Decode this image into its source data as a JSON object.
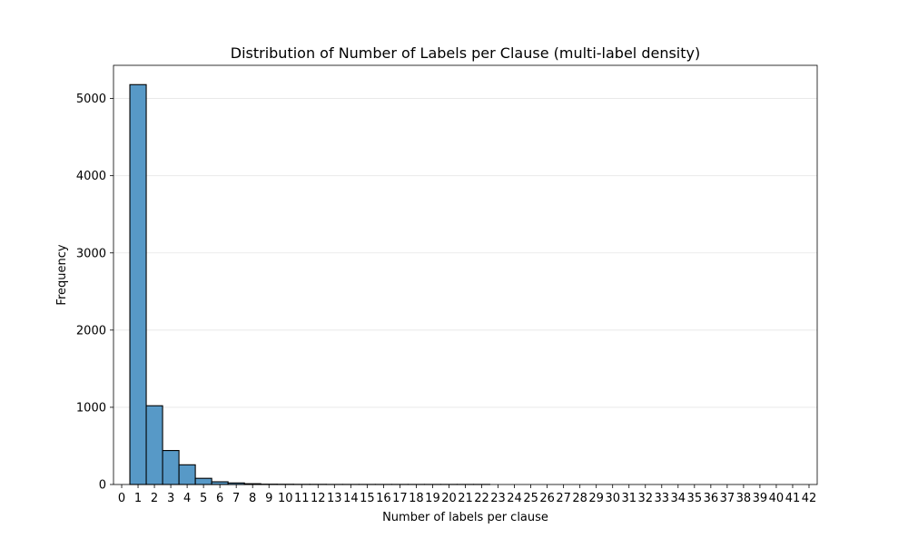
{
  "chart_data": {
    "type": "bar",
    "title": "Distribution of Number of Labels per Clause (multi-label density)",
    "xlabel": "Number of labels per clause",
    "ylabel": "Frequency",
    "x_ticks": [
      "0",
      "1",
      "2",
      "3",
      "4",
      "5",
      "6",
      "7",
      "8",
      "9",
      "10",
      "11",
      "12",
      "13",
      "14",
      "15",
      "16",
      "17",
      "18",
      "19",
      "20",
      "21",
      "22",
      "23",
      "24",
      "25",
      "26",
      "27",
      "28",
      "29",
      "30",
      "31",
      "32",
      "33",
      "34",
      "35",
      "36",
      "37",
      "38",
      "39",
      "40",
      "41",
      "42"
    ],
    "y_ticks": [
      "0",
      "1000",
      "2000",
      "3000",
      "4000",
      "5000"
    ],
    "xlim": [
      -0.5,
      42.5
    ],
    "ylim": [
      0,
      5430
    ],
    "grid": "y-axis, light",
    "bar_color": "#5799c7",
    "bins": [
      {
        "x": 1,
        "value": 5180
      },
      {
        "x": 2,
        "value": 1020
      },
      {
        "x": 3,
        "value": 440
      },
      {
        "x": 4,
        "value": 255
      },
      {
        "x": 5,
        "value": 80
      },
      {
        "x": 6,
        "value": 35
      },
      {
        "x": 7,
        "value": 20
      },
      {
        "x": 8,
        "value": 10
      },
      {
        "x": 9,
        "value": 4
      },
      {
        "x": 10,
        "value": 3
      },
      {
        "x": 11,
        "value": 2
      },
      {
        "x": 12,
        "value": 2
      },
      {
        "x": 13,
        "value": 1
      },
      {
        "x": 14,
        "value": 1
      },
      {
        "x": 15,
        "value": 1
      },
      {
        "x": 16,
        "value": 1
      },
      {
        "x": 17,
        "value": 1
      },
      {
        "x": 18,
        "value": 1
      },
      {
        "x": 19,
        "value": 1
      },
      {
        "x": 20,
        "value": 1
      },
      {
        "x": 21,
        "value": 1
      },
      {
        "x": 22,
        "value": 1
      }
    ]
  }
}
